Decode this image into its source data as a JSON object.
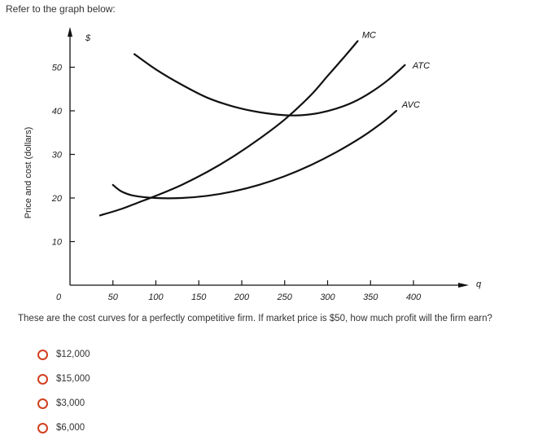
{
  "intro_text": "Refer to the graph below:",
  "question": "These are the cost curves for a perfectly competitive firm. If market price is $50, how much profit will the firm earn?",
  "options": [
    "$12,000",
    "$15,000",
    "$3,000",
    "$6,000"
  ],
  "accent_color": "#d1401f",
  "chart_data": {
    "type": "line",
    "ylabel": "Price and cost (dollars)",
    "y_unit_label": "$",
    "xlabel": "q",
    "origin_label": "0",
    "xlim": [
      0,
      450
    ],
    "ylim": [
      0,
      60
    ],
    "x_ticks": [
      50,
      100,
      150,
      200,
      250,
      300,
      350,
      400
    ],
    "y_ticks": [
      10,
      20,
      30,
      40,
      50
    ],
    "grid": false,
    "series": [
      {
        "name": "MC",
        "x": [
          35,
          60,
          80,
          100,
          130,
          160,
          190,
          220,
          250,
          280,
          300,
          320,
          335
        ],
        "y": [
          16,
          17.5,
          19,
          20.5,
          23,
          26,
          29.5,
          33.5,
          38,
          43.5,
          48,
          52.5,
          56
        ]
      },
      {
        "name": "ATC",
        "x": [
          75,
          100,
          130,
          160,
          190,
          220,
          250,
          270,
          290,
          310,
          330,
          350,
          370,
          390
        ],
        "y": [
          53,
          49.5,
          46,
          43,
          41,
          39.7,
          39,
          39,
          39.5,
          40.5,
          42,
          44.2,
          47,
          50.5
        ]
      },
      {
        "name": "AVC",
        "x": [
          50,
          60,
          75,
          100,
          130,
          160,
          190,
          220,
          250,
          280,
          310,
          340,
          365,
          380
        ],
        "y": [
          23,
          21.5,
          20.5,
          20,
          20,
          20.5,
          21.5,
          23,
          25,
          27.5,
          30.5,
          34,
          37.5,
          40
        ]
      }
    ]
  }
}
